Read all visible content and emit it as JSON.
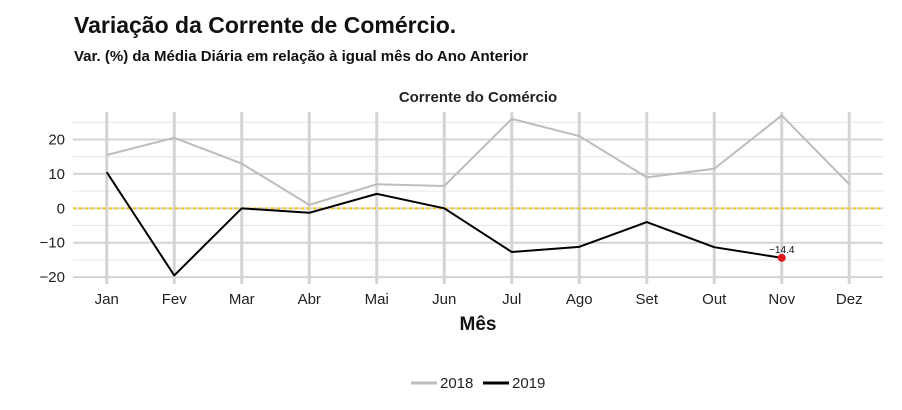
{
  "chart_data": {
    "type": "line",
    "title": "Variação da Corrente de Comércio.",
    "subtitle": "Var. (%) da Média Diária em relação à igual mês do Ano Anterior",
    "panel_title": "Corrente do Comércio",
    "xlabel": "Mês",
    "ylabel": "",
    "categories": [
      "Jan",
      "Fev",
      "Mar",
      "Abr",
      "Mai",
      "Jun",
      "Jul",
      "Ago",
      "Set",
      "Out",
      "Nov",
      "Dez"
    ],
    "ylim": [
      -22,
      28
    ],
    "yticks": [
      20,
      10,
      0,
      -10,
      -20
    ],
    "ytick_labels": [
      "20",
      "10",
      "0",
      "−10",
      "−20"
    ],
    "series": [
      {
        "name": "2018",
        "color": "#bdbdbd",
        "values": [
          15.5,
          20.5,
          13,
          1,
          7,
          6.5,
          26,
          21,
          9,
          11.5,
          27,
          7
        ]
      },
      {
        "name": "2019",
        "color": "#000000",
        "values": [
          10.5,
          -19.5,
          0,
          -1.3,
          4.2,
          0,
          -12.7,
          -11.2,
          -4,
          -11.3,
          -14.4,
          null
        ]
      }
    ],
    "reference_line": {
      "y": 0,
      "color": "#f5c518"
    },
    "highlight": {
      "series": "2019",
      "category": "Nov",
      "value": -14.4,
      "label": "−14.4",
      "color": "#e31a1c"
    },
    "grid": true,
    "legend_position": "bottom"
  }
}
